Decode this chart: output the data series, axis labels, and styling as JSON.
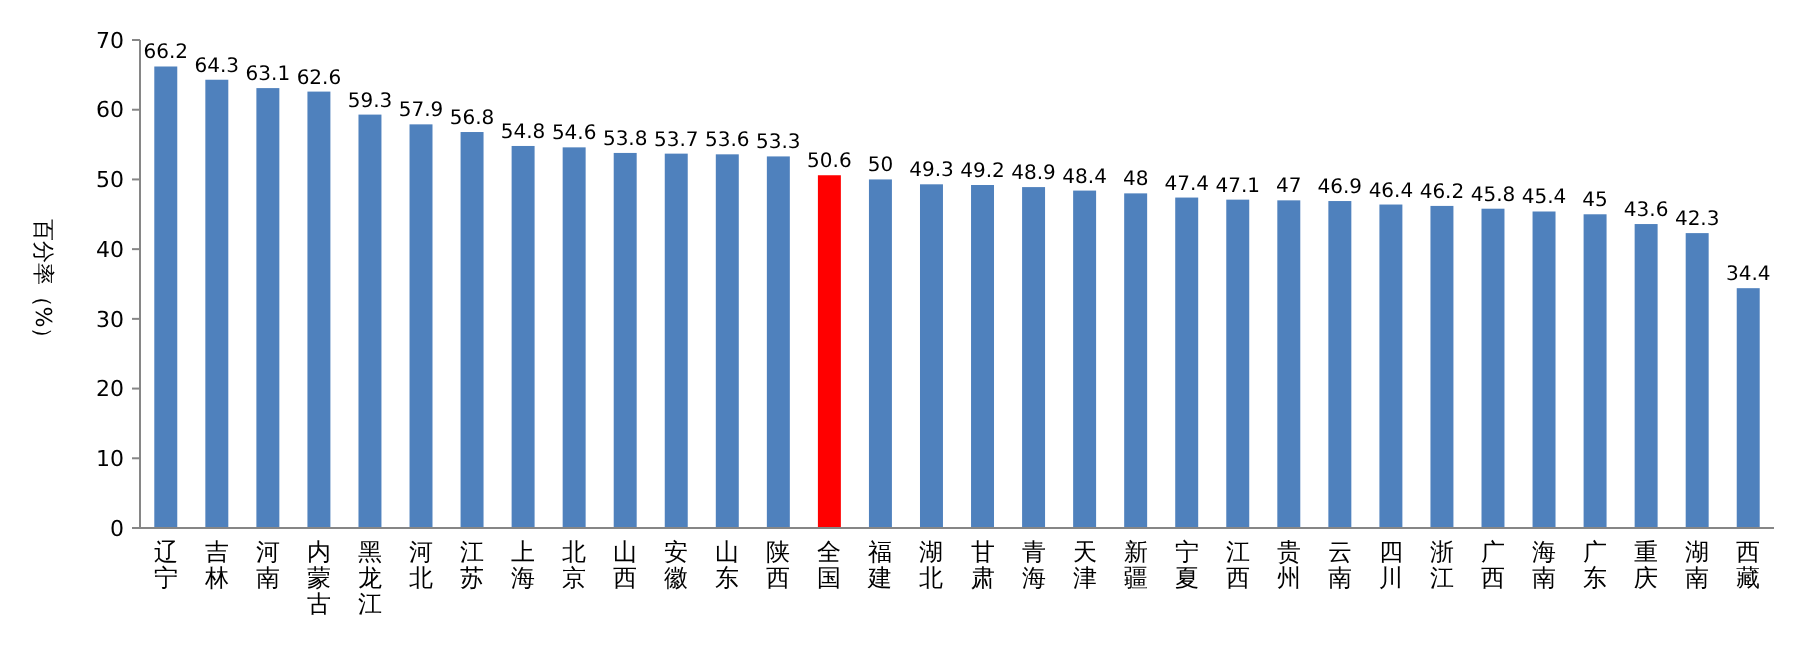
{
  "chart_data": {
    "type": "bar",
    "ylabel": "百分率（%）",
    "categories": [
      "辽宁",
      "吉林",
      "河南",
      "内蒙古",
      "黑龙江",
      "河北",
      "江苏",
      "上海",
      "北京",
      "山西",
      "安徽",
      "山东",
      "陕西",
      "全国",
      "福建",
      "湖北",
      "甘肃",
      "青海",
      "天津",
      "新疆",
      "宁夏",
      "江西",
      "贵州",
      "云南",
      "四川",
      "浙江",
      "广西",
      "海南",
      "广东",
      "重庆",
      "湖南",
      "西藏"
    ],
    "values": [
      66.2,
      64.3,
      63.1,
      62.6,
      59.3,
      57.9,
      56.8,
      54.8,
      54.6,
      53.8,
      53.7,
      53.6,
      53.3,
      50.6,
      50,
      49.3,
      49.2,
      48.9,
      48.4,
      48,
      47.4,
      47.1,
      47,
      46.9,
      46.4,
      46.2,
      45.8,
      45.4,
      45,
      43.6,
      42.3,
      34.4
    ],
    "colors": [
      "#4f81bd",
      "#4f81bd",
      "#4f81bd",
      "#4f81bd",
      "#4f81bd",
      "#4f81bd",
      "#4f81bd",
      "#4f81bd",
      "#4f81bd",
      "#4f81bd",
      "#4f81bd",
      "#4f81bd",
      "#4f81bd",
      "#ff0000",
      "#4f81bd",
      "#4f81bd",
      "#4f81bd",
      "#4f81bd",
      "#4f81bd",
      "#4f81bd",
      "#4f81bd",
      "#4f81bd",
      "#4f81bd",
      "#4f81bd",
      "#4f81bd",
      "#4f81bd",
      "#4f81bd",
      "#4f81bd",
      "#4f81bd",
      "#4f81bd",
      "#4f81bd",
      "#4f81bd"
    ],
    "ylim": [
      0,
      70
    ],
    "yticks": [
      0,
      10,
      20,
      30,
      40,
      50,
      60,
      70
    ],
    "data_labels": true,
    "grid": false
  }
}
